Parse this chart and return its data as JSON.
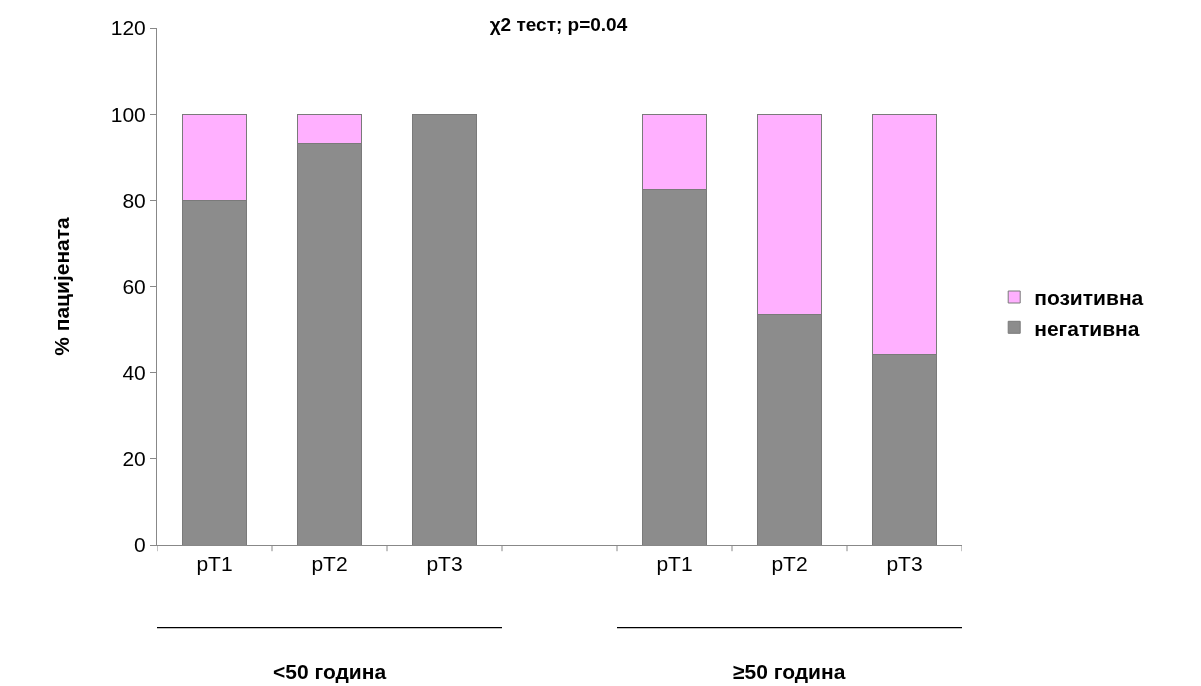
{
  "chart_data": {
    "type": "bar",
    "title": "χ2 тест; p=0.04",
    "ylabel": "% пацијената",
    "categories": [
      "pT1",
      "pT2",
      "pT3",
      null,
      "pT1",
      "pT2",
      "pT3"
    ],
    "stacked": true,
    "series": [
      {
        "name": "негативна",
        "color": "#8c8c8c",
        "values": [
          80,
          93.3,
          100,
          null,
          82.6,
          53.4,
          44.3
        ]
      },
      {
        "name": "позитивна",
        "color": "#ffb0ff",
        "values": [
          20,
          6.7,
          0,
          null,
          17.4,
          46.6,
          55.7
        ]
      }
    ],
    "ylim": [
      0,
      120
    ],
    "yticks": [
      0,
      20,
      40,
      60,
      80,
      100,
      120
    ],
    "grid": false,
    "legend": "right",
    "annotations": [
      "<50 година",
      "≥50 година"
    ]
  }
}
